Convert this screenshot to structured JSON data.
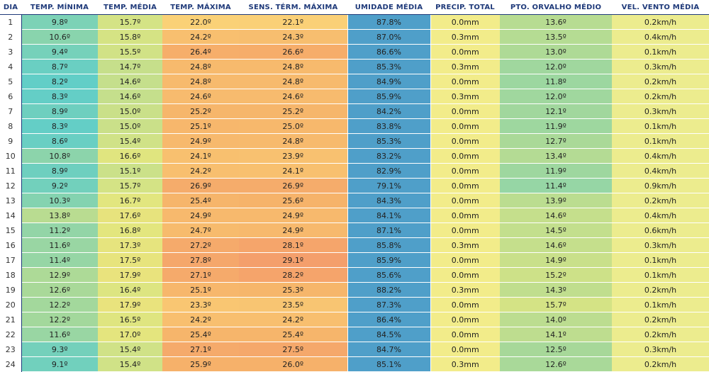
{
  "columns": [
    "DIA",
    "TEMP. MÍNIMA",
    "TEMP. MÉDIA",
    "TEMP. MÁXIMA",
    "SENS. TÉRM. MÁXIMA",
    "UMIDADE MÉDIA",
    "PRECIP. TOTAL",
    "PTO. ORVALHO MÉDIO",
    "VEL. VENTO MÉDIA"
  ],
  "rows": [
    {
      "dia": "1",
      "tmin": "9.8º",
      "tmed": "15.7º",
      "tmax": "22.0º",
      "sens": "22.1º",
      "umid": "87.8%",
      "precip": "0.0mm",
      "orv": "13.6º",
      "vento": "0.2km/h"
    },
    {
      "dia": "2",
      "tmin": "10.6º",
      "tmed": "15.8º",
      "tmax": "24.2º",
      "sens": "24.3º",
      "umid": "87.0%",
      "precip": "0.3mm",
      "orv": "13.5º",
      "vento": "0.4km/h"
    },
    {
      "dia": "3",
      "tmin": "9.4º",
      "tmed": "15.5º",
      "tmax": "26.4º",
      "sens": "26.6º",
      "umid": "86.6%",
      "precip": "0.0mm",
      "orv": "13.0º",
      "vento": "0.1km/h"
    },
    {
      "dia": "4",
      "tmin": "8.7º",
      "tmed": "14.7º",
      "tmax": "24.8º",
      "sens": "24.8º",
      "umid": "85.3%",
      "precip": "0.3mm",
      "orv": "12.0º",
      "vento": "0.3km/h"
    },
    {
      "dia": "5",
      "tmin": "8.2º",
      "tmed": "14.6º",
      "tmax": "24.8º",
      "sens": "24.8º",
      "umid": "84.9%",
      "precip": "0.0mm",
      "orv": "11.8º",
      "vento": "0.2km/h"
    },
    {
      "dia": "6",
      "tmin": "8.3º",
      "tmed": "14.6º",
      "tmax": "24.6º",
      "sens": "24.6º",
      "umid": "85.9%",
      "precip": "0.3mm",
      "orv": "12.0º",
      "vento": "0.2km/h"
    },
    {
      "dia": "7",
      "tmin": "8.9º",
      "tmed": "15.0º",
      "tmax": "25.2º",
      "sens": "25.2º",
      "umid": "84.2%",
      "precip": "0.0mm",
      "orv": "12.1º",
      "vento": "0.3km/h"
    },
    {
      "dia": "8",
      "tmin": "8.3º",
      "tmed": "15.0º",
      "tmax": "25.1º",
      "sens": "25.0º",
      "umid": "83.8%",
      "precip": "0.0mm",
      "orv": "11.9º",
      "vento": "0.1km/h"
    },
    {
      "dia": "9",
      "tmin": "8.6º",
      "tmed": "15.4º",
      "tmax": "24.9º",
      "sens": "24.8º",
      "umid": "85.3%",
      "precip": "0.0mm",
      "orv": "12.7º",
      "vento": "0.1km/h"
    },
    {
      "dia": "10",
      "tmin": "10.8º",
      "tmed": "16.6º",
      "tmax": "24.1º",
      "sens": "23.9º",
      "umid": "83.2%",
      "precip": "0.0mm",
      "orv": "13.4º",
      "vento": "0.4km/h"
    },
    {
      "dia": "11",
      "tmin": "8.9º",
      "tmed": "15.1º",
      "tmax": "24.2º",
      "sens": "24.1º",
      "umid": "82.9%",
      "precip": "0.0mm",
      "orv": "11.9º",
      "vento": "0.4km/h"
    },
    {
      "dia": "12",
      "tmin": "9.2º",
      "tmed": "15.7º",
      "tmax": "26.9º",
      "sens": "26.9º",
      "umid": "79.1%",
      "precip": "0.0mm",
      "orv": "11.4º",
      "vento": "0.9km/h"
    },
    {
      "dia": "13",
      "tmin": "10.3º",
      "tmed": "16.7º",
      "tmax": "25.4º",
      "sens": "25.6º",
      "umid": "84.3%",
      "precip": "0.0mm",
      "orv": "13.9º",
      "vento": "0.2km/h"
    },
    {
      "dia": "14",
      "tmin": "13.8º",
      "tmed": "17.6º",
      "tmax": "24.9º",
      "sens": "24.9º",
      "umid": "84.1%",
      "precip": "0.0mm",
      "orv": "14.6º",
      "vento": "0.4km/h"
    },
    {
      "dia": "15",
      "tmin": "11.2º",
      "tmed": "16.8º",
      "tmax": "24.7º",
      "sens": "24.9º",
      "umid": "87.1%",
      "precip": "0.0mm",
      "orv": "14.5º",
      "vento": "0.6km/h"
    },
    {
      "dia": "16",
      "tmin": "11.6º",
      "tmed": "17.3º",
      "tmax": "27.2º",
      "sens": "28.1º",
      "umid": "85.8%",
      "precip": "0.3mm",
      "orv": "14.6º",
      "vento": "0.3km/h"
    },
    {
      "dia": "17",
      "tmin": "11.4º",
      "tmed": "17.5º",
      "tmax": "27.8º",
      "sens": "29.1º",
      "umid": "85.9%",
      "precip": "0.0mm",
      "orv": "14.9º",
      "vento": "0.1km/h"
    },
    {
      "dia": "18",
      "tmin": "12.9º",
      "tmed": "17.9º",
      "tmax": "27.1º",
      "sens": "28.2º",
      "umid": "85.6%",
      "precip": "0.0mm",
      "orv": "15.2º",
      "vento": "0.1km/h"
    },
    {
      "dia": "19",
      "tmin": "12.6º",
      "tmed": "16.4º",
      "tmax": "25.1º",
      "sens": "25.3º",
      "umid": "88.2%",
      "precip": "0.3mm",
      "orv": "14.3º",
      "vento": "0.2km/h"
    },
    {
      "dia": "20",
      "tmin": "12.2º",
      "tmed": "17.9º",
      "tmax": "23.3º",
      "sens": "23.5º",
      "umid": "87.3%",
      "precip": "0.0mm",
      "orv": "15.7º",
      "vento": "0.1km/h"
    },
    {
      "dia": "21",
      "tmin": "12.2º",
      "tmed": "16.5º",
      "tmax": "24.2º",
      "sens": "24.2º",
      "umid": "86.4%",
      "precip": "0.0mm",
      "orv": "14.0º",
      "vento": "0.2km/h"
    },
    {
      "dia": "22",
      "tmin": "11.6º",
      "tmed": "17.0º",
      "tmax": "25.4º",
      "sens": "25.4º",
      "umid": "84.5%",
      "precip": "0.0mm",
      "orv": "14.1º",
      "vento": "0.2km/h"
    },
    {
      "dia": "23",
      "tmin": "9.3º",
      "tmed": "15.4º",
      "tmax": "27.1º",
      "sens": "27.5º",
      "umid": "84.7%",
      "precip": "0.0mm",
      "orv": "12.5º",
      "vento": "0.3km/h"
    },
    {
      "dia": "24",
      "tmin": "9.1º",
      "tmed": "15.4º",
      "tmax": "25.9º",
      "sens": "26.0º",
      "umid": "85.1%",
      "precip": "0.3mm",
      "orv": "12.6º",
      "vento": "0.2km/h"
    }
  ],
  "colors": {
    "header_text": "#1f3a7a",
    "temp_scale": [
      "#5fcdc9",
      "#a6d89a",
      "#e3e67e",
      "#fbd87a",
      "#f6b36a",
      "#f49a6c"
    ],
    "humidity": "#4f9fc9",
    "precip": "#f2ec8a",
    "wind": "#ecec8e"
  }
}
